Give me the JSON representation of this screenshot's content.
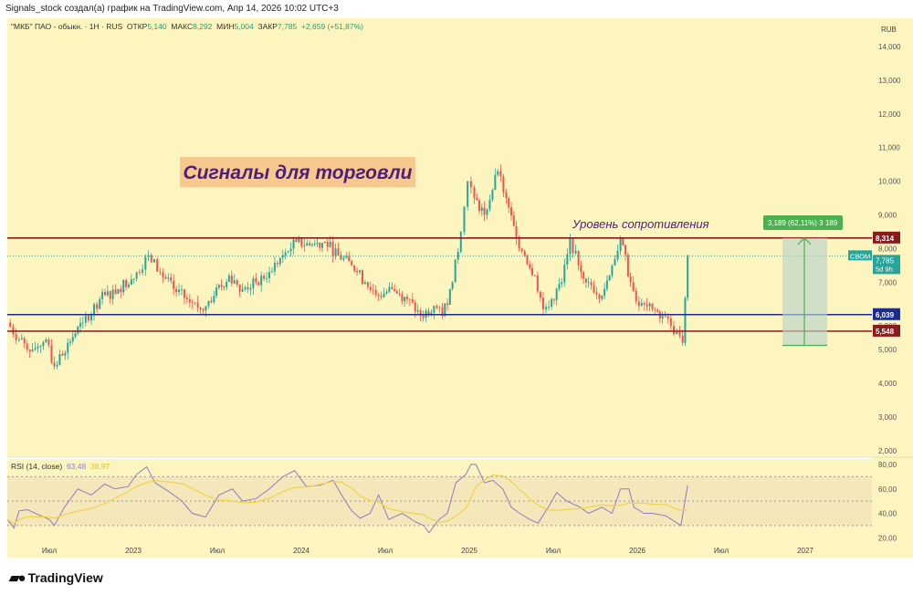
{
  "header": {
    "caption": "Signals_stock создал(а) график на TradingView.com, Апр 14, 2026 10:02 UTC+3"
  },
  "legend": {
    "symbol": "\"МКБ\" ПАО - обыкн. · 1H · RUS",
    "open_label": "ОТКР",
    "open": "5,140",
    "high_label": "МАКС",
    "high": "8,292",
    "low_label": "МИН",
    "low": "5,004",
    "close_label": "ЗАКР",
    "close": "7,785",
    "change": "+2,659 (+51,87%)"
  },
  "currency": "RUB",
  "rsi": {
    "label": "RSI (14, close)",
    "value": "63,48",
    "ma_value": "38,97"
  },
  "logo": "TradingView",
  "colors": {
    "bg": "#fdf5c0",
    "up": "#26a69a",
    "down": "#ef5350",
    "resistance": "#8b1a1a",
    "support": "#1c2c8c",
    "rsi": "#8e7cc3",
    "rsi_ma": "#f2d24a"
  },
  "chart_data": [
    {
      "type": "candlestick",
      "title": "\"МКБ\" ПАО - обыкн.",
      "x_unit": "decimal year",
      "xlim": [
        2022.22,
        2027.4
      ],
      "ylim": [
        1800,
        14400
      ],
      "y_ticks": [
        "14,000",
        "13,000",
        "12,000",
        "11,000",
        "10,000",
        "9,000",
        "8,000",
        "7,000",
        "6,000",
        "5,000",
        "4,000",
        "3,000",
        "2,000"
      ],
      "y_tick_values": [
        14000,
        13000,
        12000,
        11000,
        10000,
        9000,
        8000,
        7000,
        6000,
        5000,
        4000,
        3000,
        2000
      ],
      "x_ticks": [
        {
          "t": 2022.5,
          "label": "Июл"
        },
        {
          "t": 2023,
          "label": "2023"
        },
        {
          "t": 2023.5,
          "label": "Июл"
        },
        {
          "t": 2024,
          "label": "2024"
        },
        {
          "t": 2024.5,
          "label": "Июл"
        },
        {
          "t": 2025,
          "label": "2025"
        },
        {
          "t": 2025.5,
          "label": "Июл"
        },
        {
          "t": 2026,
          "label": "2026"
        },
        {
          "t": 2026.5,
          "label": "Июл"
        },
        {
          "t": 2027,
          "label": "2027"
        }
      ],
      "close_path": [
        [
          2022.25,
          5.8
        ],
        [
          2022.32,
          5.3
        ],
        [
          2022.4,
          5.0
        ],
        [
          2022.48,
          5.3
        ],
        [
          2022.53,
          4.5
        ],
        [
          2022.61,
          5.2
        ],
        [
          2022.7,
          5.8
        ],
        [
          2022.8,
          6.5
        ],
        [
          2022.91,
          6.8
        ],
        [
          2023.02,
          7.3
        ],
        [
          2023.09,
          7.8
        ],
        [
          2023.16,
          7.3
        ],
        [
          2023.24,
          6.8
        ],
        [
          2023.32,
          6.5
        ],
        [
          2023.4,
          6.2
        ],
        [
          2023.48,
          6.6
        ],
        [
          2023.57,
          7.2
        ],
        [
          2023.65,
          6.8
        ],
        [
          2023.73,
          7.0
        ],
        [
          2023.81,
          7.3
        ],
        [
          2023.89,
          7.8
        ],
        [
          2023.97,
          8.2
        ],
        [
          2024.05,
          8.1
        ],
        [
          2024.14,
          8.2
        ],
        [
          2024.22,
          7.8
        ],
        [
          2024.3,
          7.5
        ],
        [
          2024.38,
          7.0
        ],
        [
          2024.46,
          6.6
        ],
        [
          2024.54,
          6.8
        ],
        [
          2024.63,
          6.5
        ],
        [
          2024.71,
          6.0
        ],
        [
          2024.79,
          6.3
        ],
        [
          2024.84,
          6.0
        ],
        [
          2024.9,
          7.0
        ],
        [
          2024.95,
          8.5
        ],
        [
          2024.99,
          10.0
        ],
        [
          2025.03,
          9.5
        ],
        [
          2025.09,
          9.0
        ],
        [
          2025.17,
          10.3
        ],
        [
          2025.22,
          9.5
        ],
        [
          2025.28,
          8.3
        ],
        [
          2025.33,
          7.8
        ],
        [
          2025.39,
          7.2
        ],
        [
          2025.44,
          6.2
        ],
        [
          2025.49,
          6.5
        ],
        [
          2025.55,
          7.0
        ],
        [
          2025.6,
          8.3
        ],
        [
          2025.65,
          7.5
        ],
        [
          2025.71,
          7.0
        ],
        [
          2025.79,
          6.6
        ],
        [
          2025.85,
          7.5
        ],
        [
          2025.9,
          8.3
        ],
        [
          2025.96,
          7.0
        ],
        [
          2026.01,
          6.3
        ],
        [
          2026.09,
          6.2
        ],
        [
          2026.15,
          6.0
        ],
        [
          2026.2,
          5.7
        ],
        [
          2026.27,
          5.2
        ],
        [
          2026.3,
          7.785
        ]
      ],
      "price_unit_multiplier": 1000,
      "levels": [
        {
          "value": 8314,
          "label": "8,314",
          "kind": "resistance"
        },
        {
          "value": 6039,
          "label": "6,039",
          "kind": "support"
        },
        {
          "value": 5548,
          "label": "5,548",
          "kind": "resistance"
        }
      ],
      "last_price": {
        "value": 7785,
        "label": "7,785",
        "tag": "СВОМ",
        "countdown": "5d 9h"
      },
      "annotations": {
        "title": "Сигналы для торговли",
        "resistance_text": "Уровень сопротивления",
        "measure": {
          "from": 5125,
          "to": 8314,
          "label": "3,189 (62,11%) 3 189"
        }
      }
    },
    {
      "type": "line",
      "title": "RSI (14, close)",
      "ylim": [
        15,
        85
      ],
      "y_ticks": [
        "80,00",
        "60,00",
        "40,00",
        "20,00"
      ],
      "y_tick_values": [
        80,
        60,
        40,
        20
      ],
      "bands": [
        70,
        50,
        30
      ],
      "series": [
        {
          "name": "RSI",
          "values": [
            [
              2022.25,
              35
            ],
            [
              2022.29,
              28
            ],
            [
              2022.32,
              42
            ],
            [
              2022.37,
              43
            ],
            [
              2022.45,
              38
            ],
            [
              2022.5,
              35
            ],
            [
              2022.53,
              30
            ],
            [
              2022.59,
              45
            ],
            [
              2022.67,
              60
            ],
            [
              2022.75,
              55
            ],
            [
              2022.83,
              64
            ],
            [
              2022.89,
              60
            ],
            [
              2022.97,
              62
            ],
            [
              2023.02,
              72
            ],
            [
              2023.08,
              78
            ],
            [
              2023.13,
              65
            ],
            [
              2023.21,
              58
            ],
            [
              2023.29,
              50
            ],
            [
              2023.35,
              40
            ],
            [
              2023.43,
              37
            ],
            [
              2023.51,
              55
            ],
            [
              2023.59,
              60
            ],
            [
              2023.65,
              50
            ],
            [
              2023.73,
              52
            ],
            [
              2023.81,
              60
            ],
            [
              2023.89,
              70
            ],
            [
              2023.96,
              75
            ],
            [
              2024.03,
              62
            ],
            [
              2024.11,
              63
            ],
            [
              2024.19,
              67
            ],
            [
              2024.24,
              55
            ],
            [
              2024.3,
              42
            ],
            [
              2024.35,
              36
            ],
            [
              2024.41,
              40
            ],
            [
              2024.46,
              55
            ],
            [
              2024.52,
              35
            ],
            [
              2024.6,
              40
            ],
            [
              2024.68,
              33
            ],
            [
              2024.73,
              30
            ],
            [
              2024.76,
              24
            ],
            [
              2024.82,
              35
            ],
            [
              2024.87,
              40
            ],
            [
              2024.92,
              65
            ],
            [
              2024.98,
              72
            ],
            [
              2025.01,
              80
            ],
            [
              2025.04,
              80
            ],
            [
              2025.09,
              65
            ],
            [
              2025.14,
              67
            ],
            [
              2025.2,
              60
            ],
            [
              2025.25,
              45
            ],
            [
              2025.3,
              40
            ],
            [
              2025.36,
              35
            ],
            [
              2025.41,
              32
            ],
            [
              2025.47,
              45
            ],
            [
              2025.52,
              57
            ],
            [
              2025.58,
              50
            ],
            [
              2025.66,
              45
            ],
            [
              2025.71,
              40
            ],
            [
              2025.79,
              45
            ],
            [
              2025.85,
              40
            ],
            [
              2025.9,
              60
            ],
            [
              2025.95,
              60
            ],
            [
              2025.98,
              45
            ],
            [
              2026.04,
              40
            ],
            [
              2026.09,
              40
            ],
            [
              2026.17,
              38
            ],
            [
              2026.26,
              30
            ],
            [
              2026.3,
              63
            ]
          ]
        }
      ]
    }
  ]
}
